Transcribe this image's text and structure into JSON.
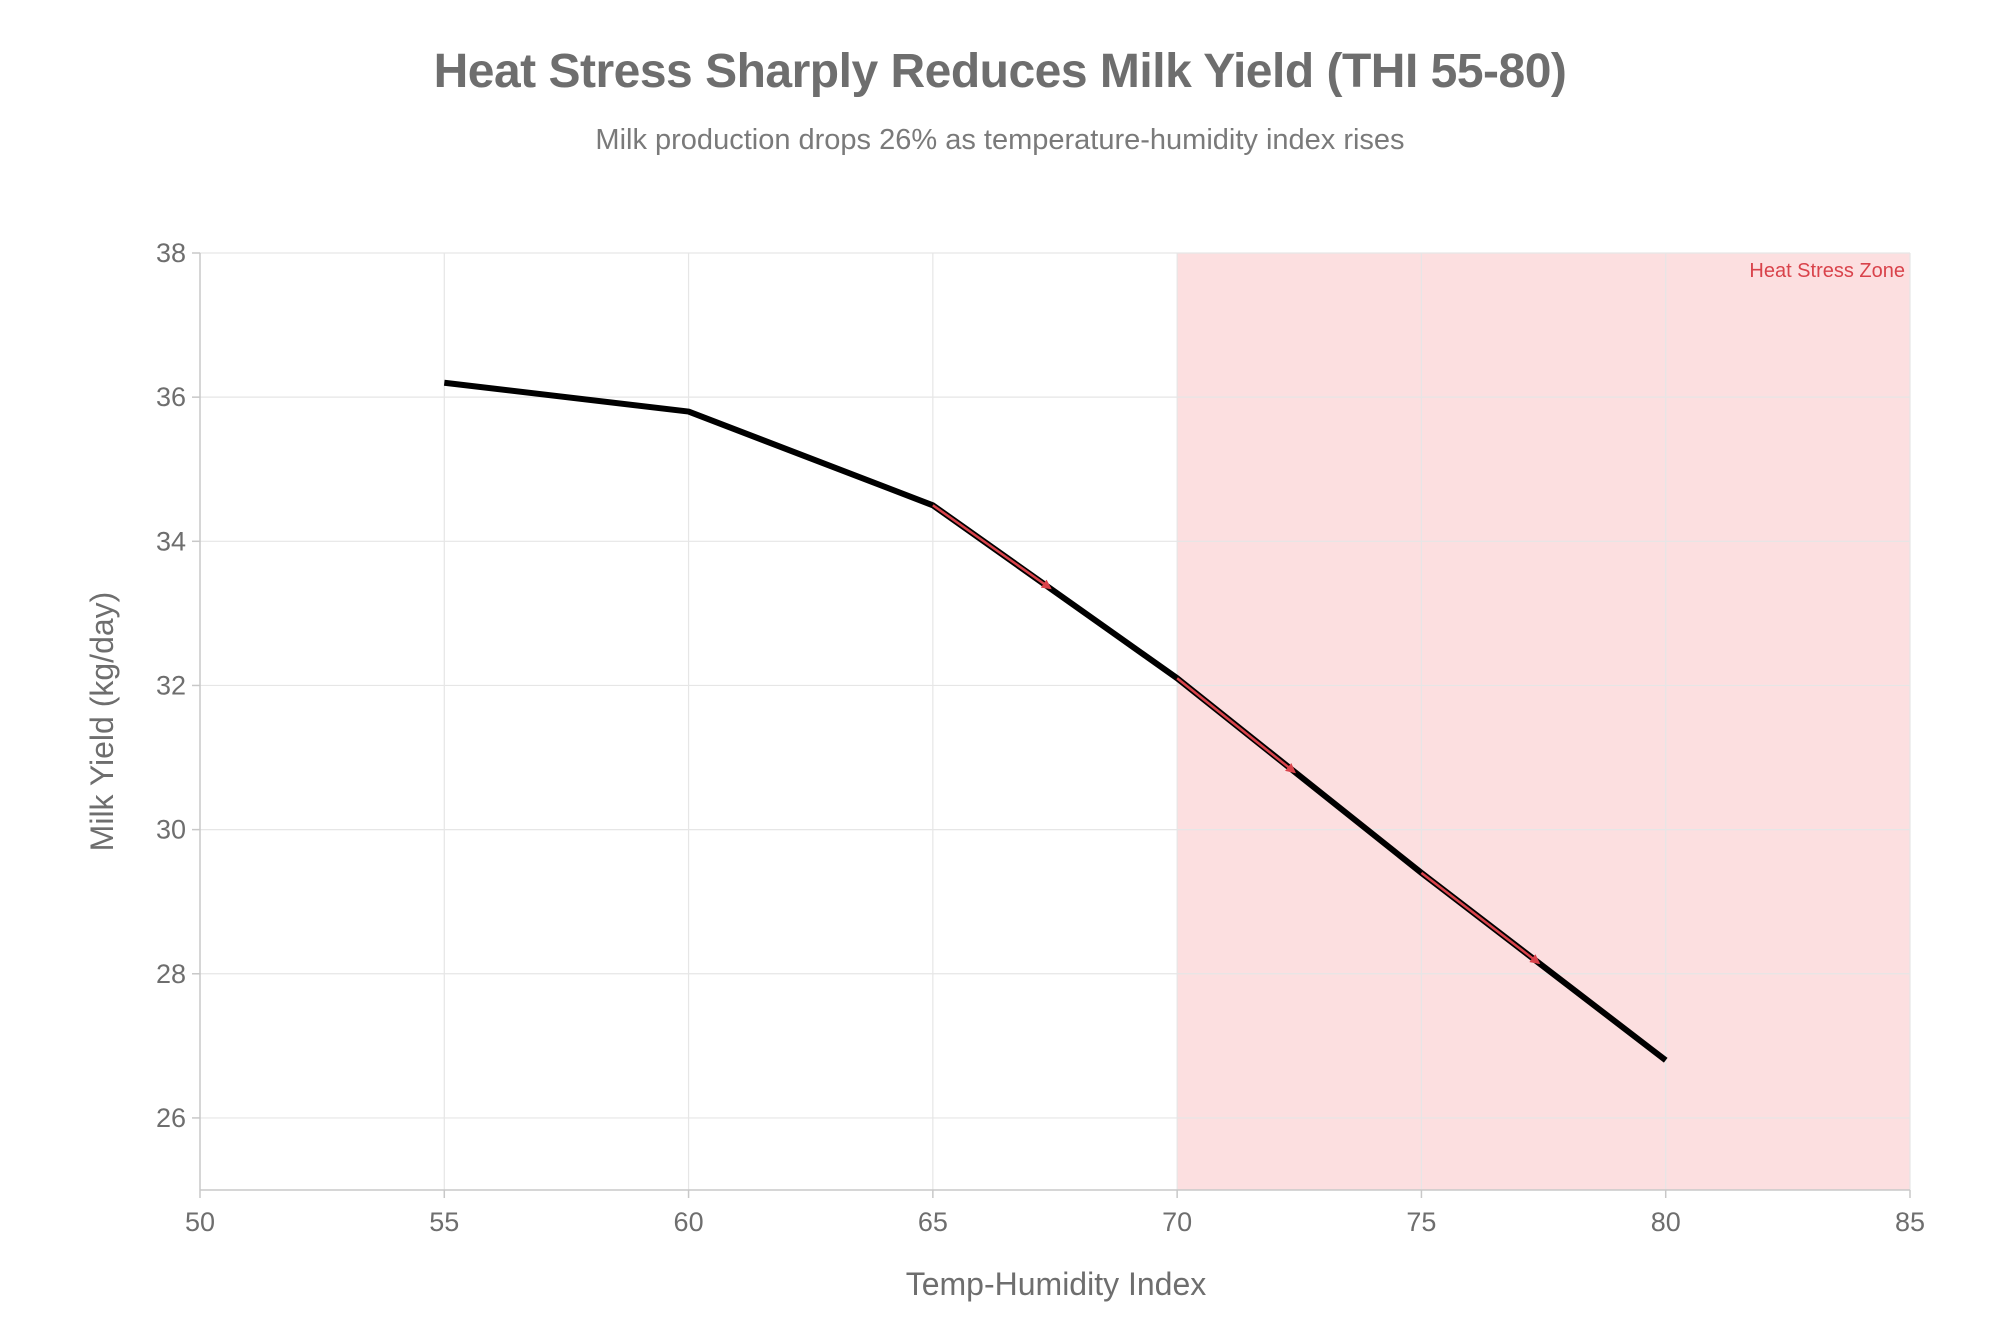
{
  "title": "Heat Stress Sharply Reduces Milk Yield (THI 55-80)",
  "subtitle": "Milk production drops 26% as temperature-humidity index rises",
  "chart_data": {
    "type": "line",
    "xlabel": "Temp-Humidity Index",
    "ylabel": "Milk Yield (kg/day)",
    "xlim": [
      50,
      85
    ],
    "ylim": [
      25,
      38
    ],
    "x_ticks": [
      50,
      55,
      60,
      65,
      70,
      75,
      80,
      85
    ],
    "y_ticks": [
      26,
      28,
      30,
      32,
      34,
      36,
      38
    ],
    "grid": true,
    "series": [
      {
        "x": [
          55,
          60,
          65,
          70,
          75,
          80
        ],
        "y": [
          36.2,
          35.8,
          34.5,
          32.1,
          29.4,
          26.8
        ],
        "color": "#000000"
      }
    ],
    "arrows": [
      {
        "from": [
          65,
          34.5
        ],
        "to": [
          67.4,
          33.35
        ]
      },
      {
        "from": [
          70,
          32.1
        ],
        "to": [
          72.4,
          30.8
        ]
      },
      {
        "from": [
          75,
          29.4
        ],
        "to": [
          77.4,
          28.15
        ]
      }
    ],
    "arrow_color": "#d9434b",
    "shaded_region": {
      "x_start": 70,
      "x_end": 85,
      "label": "Heat Stress Zone",
      "fill": "#fcdfe0",
      "label_color": "#d9434b"
    }
  }
}
